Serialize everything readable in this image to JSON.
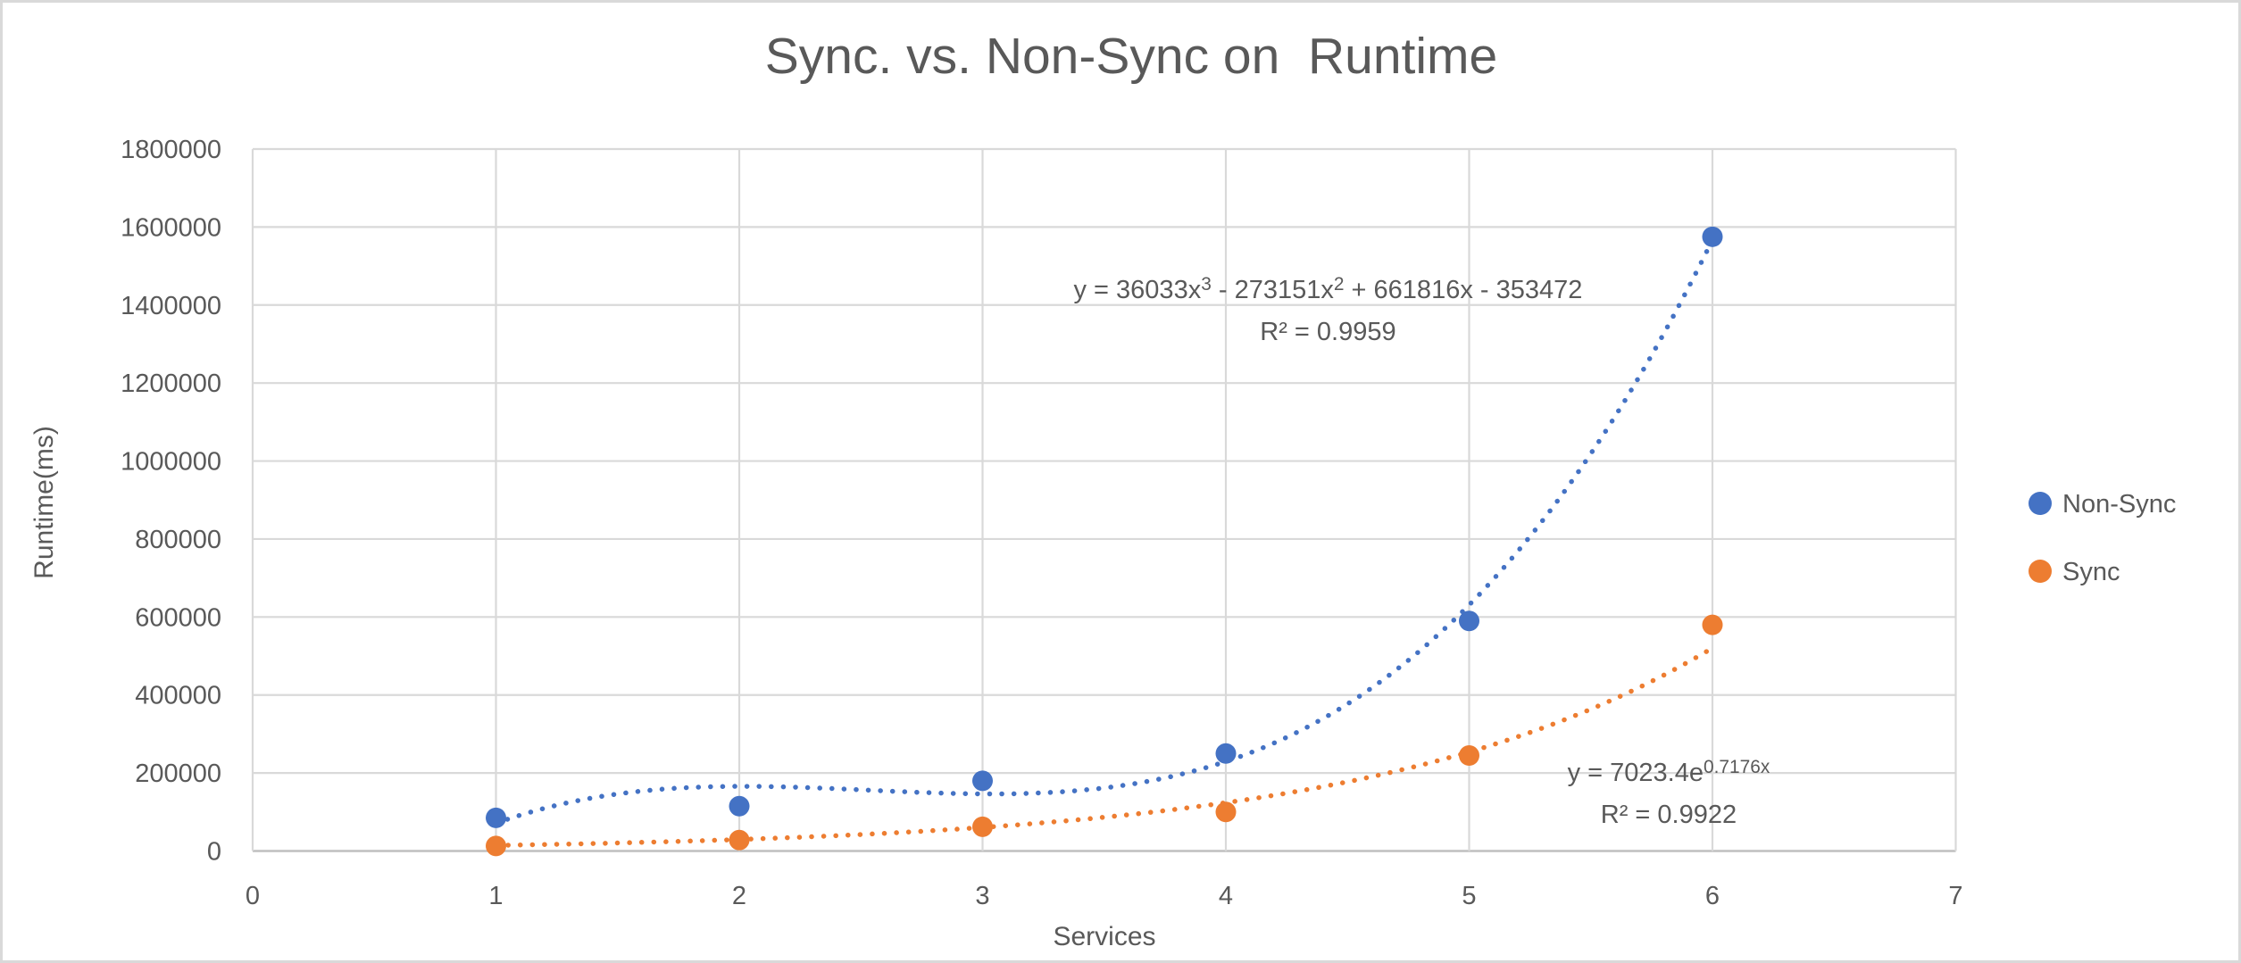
{
  "window": {
    "background": "#ffffff",
    "border_color": "#d9d9d9"
  },
  "chart_data": {
    "type": "scatter",
    "title": "Sync. vs. Non-Sync on  Runtime",
    "xlabel": "Services",
    "ylabel": "Runtime(ms)",
    "xlim": [
      0,
      7
    ],
    "ylim": [
      0,
      1800000
    ],
    "x_ticks": [
      0,
      1,
      2,
      3,
      4,
      5,
      6,
      7
    ],
    "y_ticks": [
      0,
      200000,
      400000,
      600000,
      800000,
      1000000,
      1200000,
      1400000,
      1600000,
      1800000
    ],
    "grid": true,
    "legend_position": "right-middle",
    "text_color": "#595959",
    "gridline_color": "#d9d9d9",
    "axis_line_color": "#bfbfbf",
    "series": [
      {
        "name": "Non-Sync",
        "color": "#4472c4",
        "x": [
          1,
          2,
          3,
          4,
          5,
          6
        ],
        "y": [
          85000,
          115000,
          180000,
          250000,
          590000,
          1575000
        ],
        "trendline": {
          "type": "polynomial",
          "degree": 3,
          "coefficients": [
            36033,
            -273151,
            661816,
            -353472
          ],
          "x_range": [
            1,
            6
          ],
          "equation_parts": [
            {
              "t": "y = 36033x"
            },
            {
              "t": "3",
              "sup": true
            },
            {
              "t": " - 273151x"
            },
            {
              "t": "2",
              "sup": true
            },
            {
              "t": " + 661816x - 353472"
            }
          ],
          "r2_label": "R² = 0.9959",
          "label_anchor": {
            "x": 4.42,
            "y": 1490000
          }
        }
      },
      {
        "name": "Sync",
        "color": "#ed7d31",
        "x": [
          1,
          2,
          3,
          4,
          5,
          6
        ],
        "y": [
          13000,
          28000,
          62000,
          100000,
          245000,
          580000
        ],
        "trendline": {
          "type": "exponential",
          "a": 7023.4,
          "b": 0.7176,
          "x_range": [
            1,
            6
          ],
          "equation_parts": [
            {
              "t": "y = 7023.4e"
            },
            {
              "t": "0.7176x",
              "sup": true
            }
          ],
          "r2_label": "R² = 0.9922",
          "label_anchor": {
            "x": 5.82,
            "y": 253000
          }
        }
      }
    ]
  }
}
